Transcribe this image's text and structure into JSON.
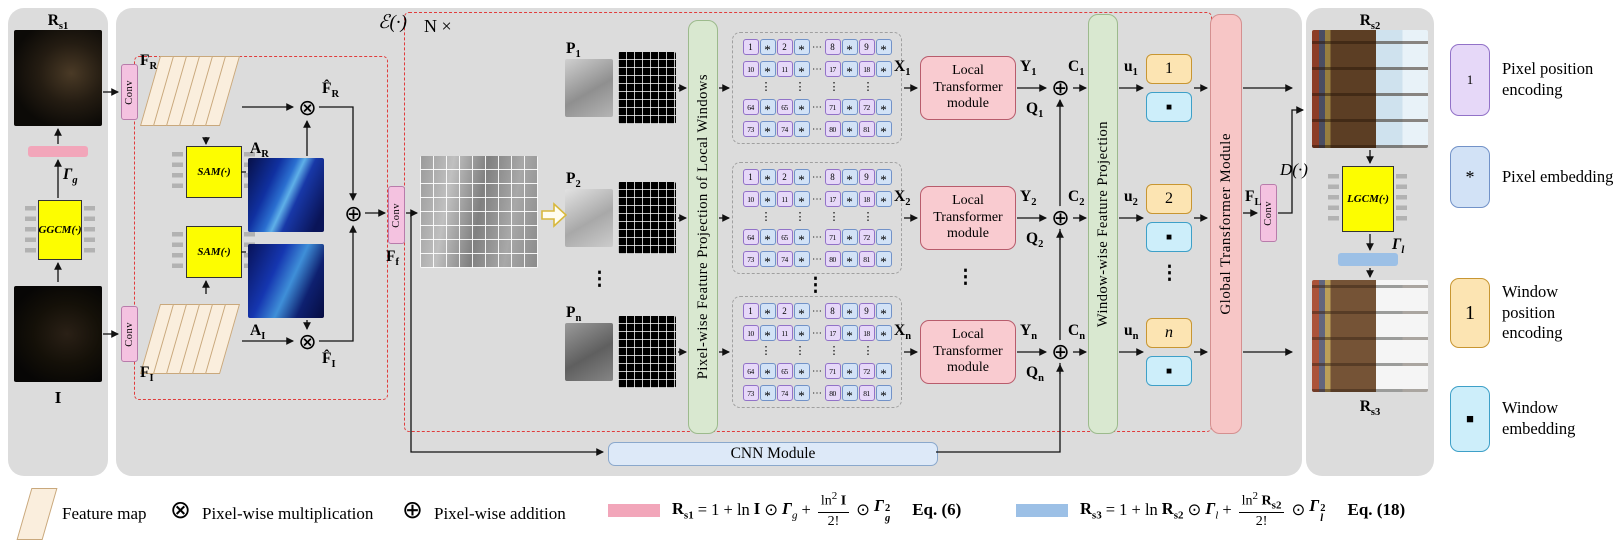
{
  "colors": {
    "panel_gray": "#dcdcdc",
    "pixel_position": "#e6d8f8",
    "pixel_embedding": "#d2e2f6",
    "window_position": "#fce4b2",
    "window_embedding": "#cdeefa",
    "gamma_g_bar": "#f2a6ba",
    "gamma_l_bar": "#9cc0e6",
    "module_yellow": "#fdfd00",
    "red_dashed": "#e03c3c"
  },
  "left": {
    "rs1": {
      "b": "R",
      "s": "s1"
    },
    "gamma": {
      "b": "Γ",
      "s": "g"
    },
    "ggcm": "GGCM(·)",
    "input": "I"
  },
  "right": {
    "rs2": {
      "b": "R",
      "s": "s2"
    },
    "lgcm": "LGCM(·)",
    "gamma": {
      "b": "Γ",
      "s": "l"
    },
    "rs3": {
      "b": "R",
      "s": "s3"
    }
  },
  "main": {
    "encoder": "ℰ(·)",
    "decoder": "D(·)",
    "n_times": "N ×",
    "conv": "Conv",
    "fr": {
      "b": "F",
      "s": "R"
    },
    "fi": {
      "b": "F",
      "s": "I"
    },
    "ff": {
      "b": "F",
      "s": "f"
    },
    "fl": {
      "b": "F",
      "s": "L"
    },
    "sam": "SAM(·)",
    "ar": {
      "b": "A",
      "s": "R"
    },
    "ai": {
      "b": "A",
      "s": "I"
    },
    "fhat_r": {
      "b": "F̂",
      "s": "R"
    },
    "fhat_i": {
      "b": "F̂",
      "s": "I"
    },
    "otimes": "⊗",
    "oplus": "⊕",
    "p": [
      {
        "b": "P",
        "s": "1"
      },
      {
        "b": "P",
        "s": "2"
      },
      {
        "b": "P",
        "s": "n"
      }
    ],
    "x": [
      {
        "b": "X",
        "s": "1"
      },
      {
        "b": "X",
        "s": "2"
      },
      {
        "b": "X",
        "s": "n"
      }
    ],
    "y": [
      {
        "b": "Y",
        "s": "1"
      },
      {
        "b": "Y",
        "s": "2"
      },
      {
        "b": "Y",
        "s": "n"
      }
    ],
    "q": [
      {
        "b": "Q",
        "s": "1"
      },
      {
        "b": "Q",
        "s": "2"
      },
      {
        "b": "Q",
        "s": "n"
      }
    ],
    "c": [
      {
        "b": "C",
        "s": "1"
      },
      {
        "b": "C",
        "s": "2"
      },
      {
        "b": "C",
        "s": "n"
      }
    ],
    "u": [
      {
        "b": "u",
        "s": "1"
      },
      {
        "b": "u",
        "s": "2"
      },
      {
        "b": "u",
        "s": "n"
      }
    ],
    "local_transformer": "Local Transformer module",
    "pixel_projection": "Pixel-wise Feature Projection of Local Windows",
    "window_projection": "Window-wise Feature Projection",
    "global_transformer": "Global Transformer Module",
    "cnn": "CNN Module",
    "window_tokens": [
      "1",
      "2",
      "n"
    ],
    "window_embed": "■",
    "vdots": "⋮"
  },
  "token_grid": {
    "star": "*",
    "hdots": "⋯",
    "vdots": "⋮",
    "rows": [
      [
        "1",
        "2",
        "8",
        "9"
      ],
      [
        "10",
        "11",
        "17",
        "18"
      ],
      [
        "64",
        "65",
        "71",
        "72"
      ],
      [
        "73",
        "74",
        "80",
        "81"
      ]
    ]
  },
  "legend": {
    "items": [
      {
        "symbol": "1",
        "label": "Pixel position encoding"
      },
      {
        "symbol": "*",
        "label": "Pixel embedding"
      },
      {
        "symbol": "1",
        "label": "Window position encoding"
      },
      {
        "symbol": "■",
        "label": "Window embedding"
      }
    ]
  },
  "bottom": {
    "feature_map": "Feature map",
    "otimes": "⊗",
    "multiply": "Pixel-wise multiplication",
    "oplus": "⊕",
    "add": "Pixel-wise addition",
    "eq6": {
      "r_b": "R",
      "r_s": "s1",
      "eq1": "= 1 + ln",
      "v1": "I",
      "v1_s": "",
      "od": "⊙",
      "g_b": "Γ",
      "g_s": "g",
      "plus": "+",
      "num_ln": "ln",
      "num_sup": "2",
      "num_v": "I",
      "num_v_s": "",
      "den": "2!",
      "od2": "⊙",
      "g2_b": "Γ",
      "g2_sup": "2",
      "g2_sub": "g",
      "label": "Eq. (6)"
    },
    "eq18": {
      "r_b": "R",
      "r_s": "s3",
      "eq1": "= 1 + ln",
      "v1": "R",
      "v1_s": "s2",
      "od": "⊙",
      "g_b": "Γ",
      "g_s": "l",
      "plus": "+",
      "num_ln": "ln",
      "num_sup": "2",
      "num_v": "R",
      "num_v_s": "s2",
      "den": "2!",
      "od2": "⊙",
      "g2_b": "Γ",
      "g2_sup": "2",
      "g2_sub": "l",
      "label": "Eq. (18)"
    }
  }
}
